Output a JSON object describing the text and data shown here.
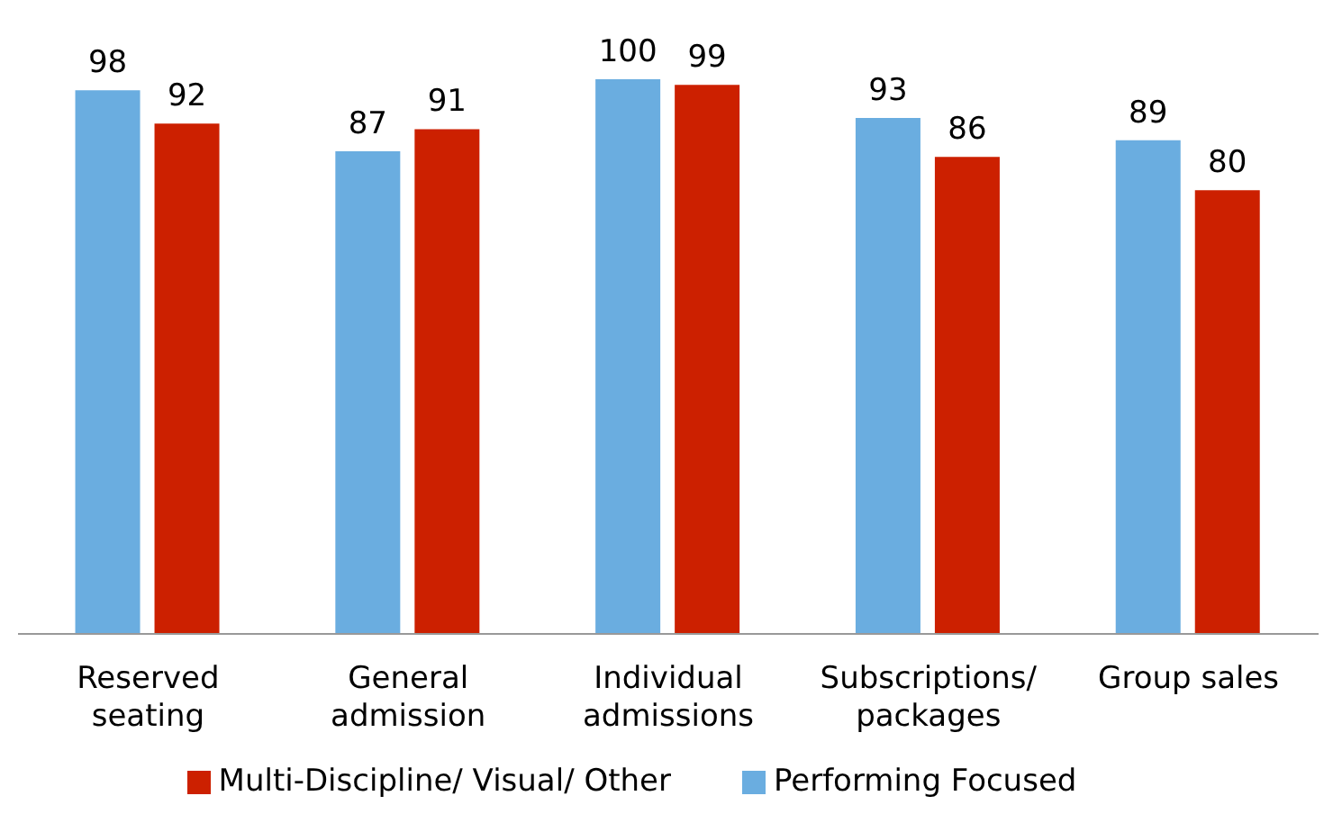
{
  "chart_data": {
    "type": "bar",
    "categories": [
      "Reserved seating",
      "General admission",
      "Individual admissions",
      "Subscriptions/ packages",
      "Group sales"
    ],
    "series": [
      {
        "name": "Performing Focused",
        "color": "#6aade0",
        "values": [
          98,
          87,
          100,
          93,
          89
        ]
      },
      {
        "name": "Multi-Discipline/ Visual/ Other",
        "color": "#cc2000",
        "values": [
          92,
          91,
          99,
          86,
          80
        ]
      }
    ],
    "data_labels": true,
    "legend": "bottom",
    "grid": false
  }
}
